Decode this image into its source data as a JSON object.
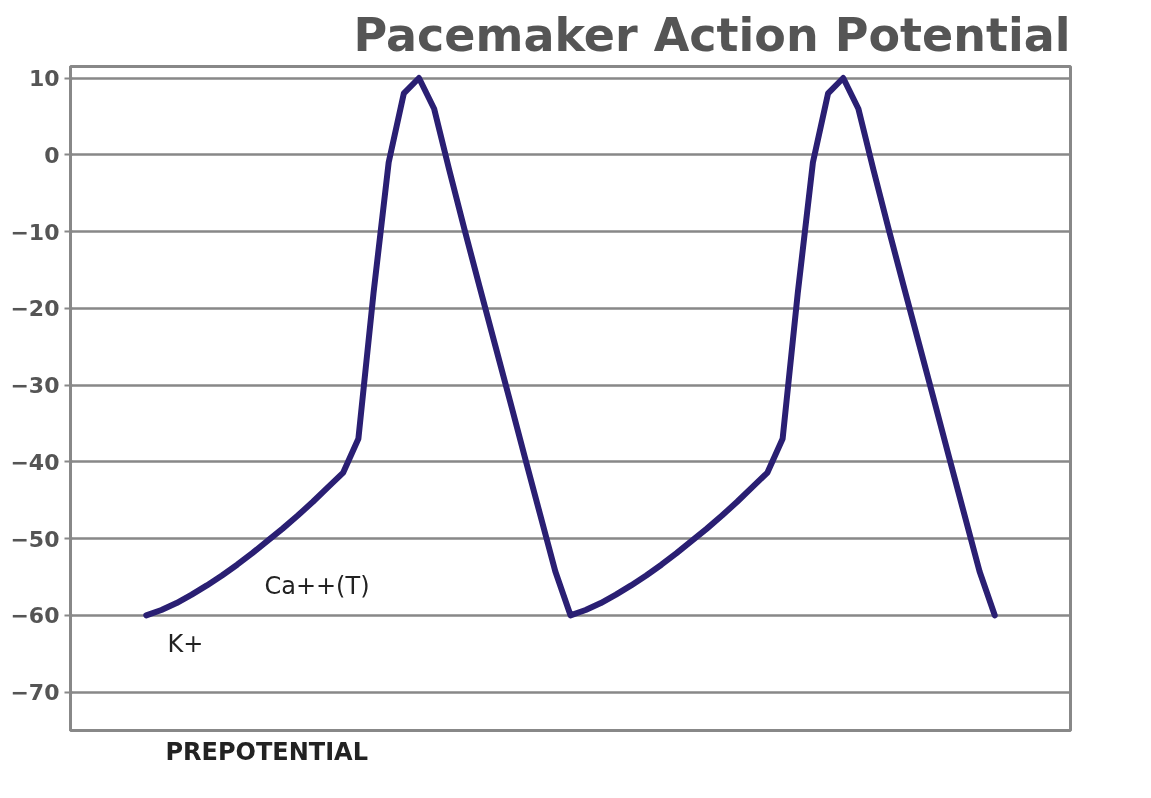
{
  "chart_data": {
    "type": "line",
    "title": "Pacemaker Action Potential",
    "categories": [
      null,
      null,
      null,
      null,
      null,
      null,
      null,
      null,
      null,
      null,
      null,
      null,
      null,
      null,
      null,
      null,
      null,
      null,
      null,
      null,
      null,
      null,
      null,
      null,
      null,
      null,
      null,
      null,
      null,
      null,
      null,
      null,
      null,
      null,
      null,
      null,
      null,
      null,
      null,
      null,
      null,
      null,
      null,
      null,
      null,
      null,
      null,
      null,
      null,
      null,
      null,
      null,
      null,
      null,
      null,
      null,
      null
    ],
    "series": [
      {
        "color": "#2a1f73",
        "values": [
          -60,
          -59.3,
          -58.4,
          -57.3,
          -56.1,
          -54.8,
          -53.4,
          -51.9,
          -50.3,
          -48.7,
          -47,
          -45.2,
          -43.3,
          -41.4,
          -37,
          -18,
          -1,
          8,
          10,
          6,
          -2,
          -9.7,
          -17.2,
          -24.6,
          -32,
          -39.5,
          -46.9,
          -54.3,
          -60,
          -59.3,
          -58.4,
          -57.3,
          -56.1,
          -54.8,
          -53.4,
          -51.9,
          -50.3,
          -48.7,
          -47,
          -45.2,
          -43.3,
          -41.4,
          -37,
          -18,
          -1,
          8,
          10,
          6,
          -2,
          -9.7,
          -17.2,
          -24.6,
          -32,
          -39.5,
          -46.9,
          -54.3,
          -60
        ]
      }
    ],
    "ylim": [
      -75,
      11.5
    ],
    "yticks": [
      -70,
      -60,
      -50,
      -40,
      -30,
      -20,
      -10,
      0,
      10
    ],
    "grid": "y",
    "tick_labels": "y",
    "annotations": [
      "K+",
      "Ca++(T)",
      "PREPOTENTIAL"
    ]
  }
}
